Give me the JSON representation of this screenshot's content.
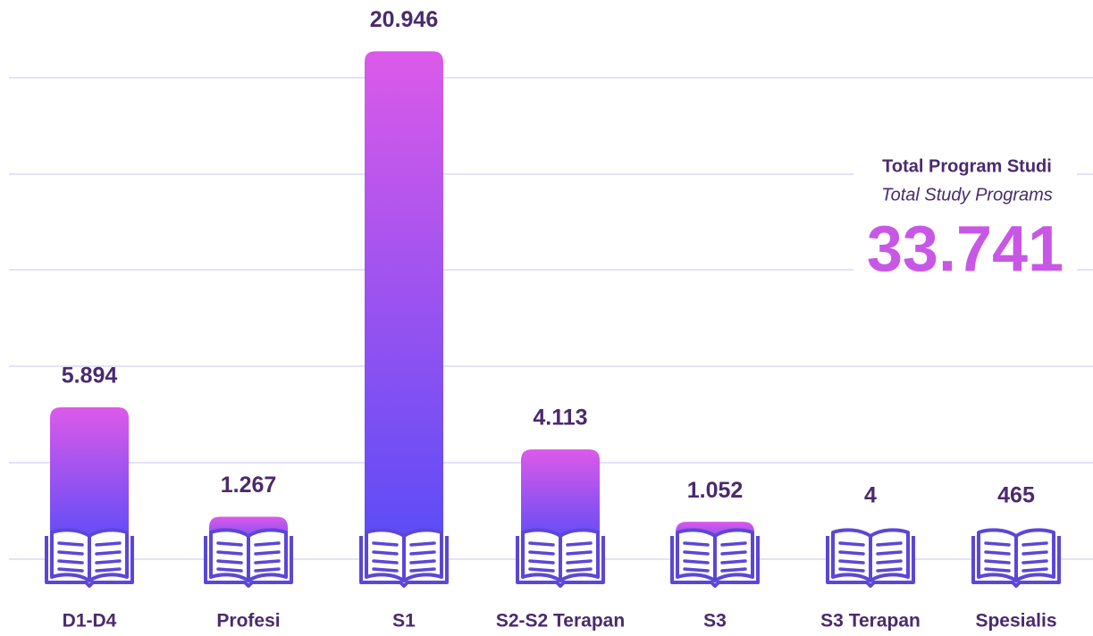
{
  "chart_data": {
    "type": "bar",
    "categories": [
      "D1-D4",
      "Profesi",
      "S1",
      "S2-S2 Terapan",
      "S3",
      "S3 Terapan",
      "Spesialis"
    ],
    "values": [
      5894,
      1267,
      20946,
      4113,
      1052,
      4,
      465
    ],
    "value_labels": [
      "5.894",
      "1.267",
      "20.946",
      "4.113",
      "1.052",
      "4",
      "465"
    ],
    "ylim": [
      0,
      21000
    ],
    "gradient": [
      "#dc5ae9",
      "#5a4cf6"
    ],
    "total": {
      "title": "Total Program Studi",
      "subtitle": "Total Study Programs",
      "value": 33741,
      "label": "33.741",
      "color": "#c957e6"
    }
  }
}
